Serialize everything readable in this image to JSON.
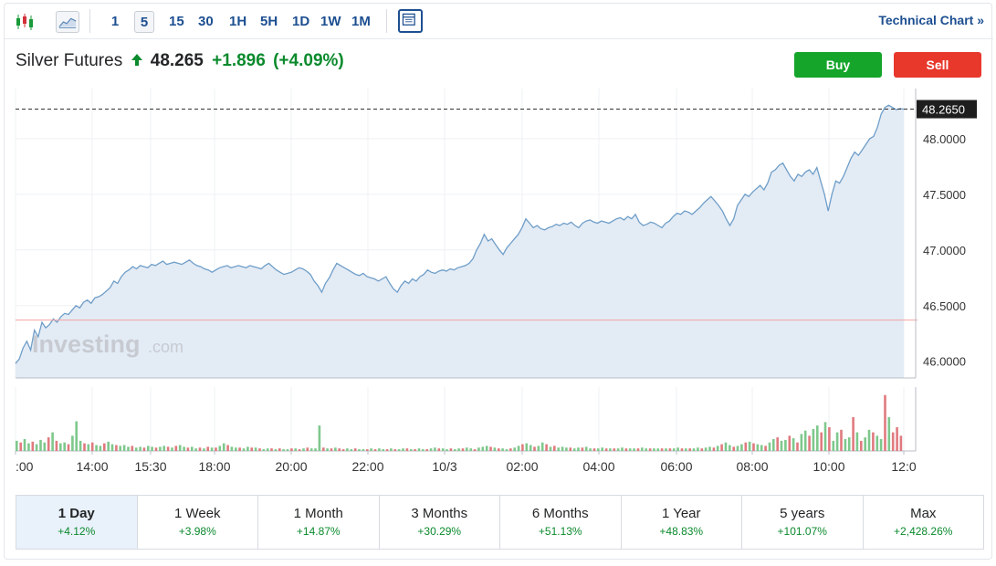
{
  "toolbar": {
    "candle_icon": "candlestick-icon",
    "area_icon": "area-chart-icon",
    "intervals": [
      "1",
      "5",
      "15",
      "30",
      "1H",
      "5H",
      "1D",
      "1W",
      "1M"
    ],
    "active_interval": "5",
    "layout_icon": "layout-icon",
    "technical_chart_label": "Technical Chart »"
  },
  "quote": {
    "name": "Silver Futures",
    "direction_icon": "arrow-up-icon",
    "price": "48.265",
    "change": "+1.896",
    "change_pct": "(+4.09%)"
  },
  "actions": {
    "buy_label": "Buy",
    "sell_label": "Sell"
  },
  "watermark": {
    "brand": "Investing",
    "suffix": ".com"
  },
  "current_price_label": "48.2650",
  "colors": {
    "line": "#6f9ec8",
    "area": "#e3ebf5",
    "up": "#1a9a3a",
    "down": "#d3323a",
    "prev_close_line": "#f4a3a3",
    "label_bg": "#1e1e1e"
  },
  "periods": [
    {
      "label": "1 Day",
      "change": "+4.12%",
      "active": true
    },
    {
      "label": "1 Week",
      "change": "+3.98%"
    },
    {
      "label": "1 Month",
      "change": "+14.87%"
    },
    {
      "label": "3 Months",
      "change": "+30.29%"
    },
    {
      "label": "6 Months",
      "change": "+51.13%"
    },
    {
      "label": "1 Year",
      "change": "+48.83%"
    },
    {
      "label": "5 years",
      "change": "+101.07%"
    },
    {
      "label": "Max",
      "change": "+2,428.26%"
    }
  ],
  "chart_data": {
    "type": "area",
    "y_ticks": [
      "46.0000",
      "46.5000",
      "47.0000",
      "47.5000",
      "48.0000"
    ],
    "y_range": [
      45.85,
      48.45
    ],
    "x_ticks": [
      ":00",
      "14:00",
      "15:30",
      "18:00",
      "20:00",
      "22:00",
      "10/3",
      "02:00",
      "04:00",
      "06:00",
      "08:00",
      "10:00",
      "12:0"
    ],
    "previous_close": 46.37,
    "last": 48.265,
    "grid": true,
    "series": [
      {
        "values": [
          45.98,
          46.02,
          46.12,
          46.18,
          46.1,
          46.28,
          46.22,
          46.35,
          46.3,
          46.33,
          46.38,
          46.35,
          46.4,
          46.43,
          46.42,
          46.46,
          46.5,
          46.48,
          46.53,
          46.55,
          46.52,
          46.57,
          46.58,
          46.6,
          46.63,
          46.66,
          46.72,
          46.7,
          46.76,
          46.8,
          46.82,
          46.85,
          46.83,
          46.86,
          46.85,
          46.84,
          46.87,
          46.86,
          46.88,
          46.9,
          46.87,
          46.88,
          46.89,
          46.88,
          46.87,
          46.89,
          46.91,
          46.88,
          46.86,
          46.85,
          46.83,
          46.82,
          46.8,
          46.82,
          46.84,
          46.85,
          46.86,
          46.84,
          46.85,
          46.86,
          46.85,
          46.84,
          46.86,
          46.85,
          46.84,
          46.83,
          46.86,
          46.88,
          46.85,
          46.82,
          46.8,
          46.78,
          46.79,
          46.8,
          46.82,
          46.84,
          46.83,
          46.81,
          46.78,
          46.72,
          46.68,
          46.62,
          46.7,
          46.75,
          46.82,
          46.88,
          46.86,
          46.84,
          46.82,
          46.8,
          46.78,
          46.77,
          46.79,
          46.76,
          46.75,
          46.74,
          46.72,
          46.74,
          46.76,
          46.7,
          46.65,
          46.62,
          46.68,
          46.72,
          46.7,
          46.74,
          46.72,
          46.76,
          46.78,
          46.82,
          46.8,
          46.79,
          46.81,
          46.82,
          46.81,
          46.83,
          46.82,
          46.84,
          46.85,
          46.86,
          46.88,
          46.92,
          47.0,
          47.06,
          47.14,
          47.08,
          47.1,
          47.05,
          47.0,
          46.96,
          47.02,
          47.06,
          47.1,
          47.14,
          47.2,
          47.28,
          47.24,
          47.2,
          47.22,
          47.19,
          47.18,
          47.2,
          47.21,
          47.23,
          47.22,
          47.24,
          47.23,
          47.25,
          47.22,
          47.2,
          47.24,
          47.26,
          47.27,
          47.25,
          47.24,
          47.26,
          47.25,
          47.24,
          47.26,
          47.28,
          47.29,
          47.27,
          47.3,
          47.28,
          47.32,
          47.25,
          47.22,
          47.23,
          47.25,
          47.24,
          47.22,
          47.2,
          47.24,
          47.26,
          47.3,
          47.33,
          47.32,
          47.35,
          47.34,
          47.32,
          47.35,
          47.38,
          47.42,
          47.45,
          47.48,
          47.44,
          47.4,
          47.35,
          47.28,
          47.22,
          47.28,
          47.4,
          47.45,
          47.5,
          47.48,
          47.52,
          47.55,
          47.58,
          47.54,
          47.6,
          47.7,
          47.72,
          47.76,
          47.78,
          47.72,
          47.66,
          47.62,
          47.68,
          47.66,
          47.7,
          47.72,
          47.68,
          47.74,
          47.62,
          47.5,
          47.35,
          47.5,
          47.62,
          47.6,
          47.66,
          47.74,
          47.82,
          47.88,
          47.85,
          47.9,
          47.95,
          48.0,
          48.02,
          48.1,
          48.22,
          48.28,
          48.3,
          48.28,
          48.26,
          48.27,
          48.265
        ]
      }
    ],
    "volume": {
      "values": [
        12,
        10,
        14,
        9,
        11,
        8,
        13,
        10,
        16,
        22,
        12,
        9,
        10,
        8,
        18,
        35,
        12,
        9,
        8,
        10,
        7,
        6,
        9,
        11,
        8,
        7,
        6,
        7,
        5,
        6,
        4,
        5,
        4,
        6,
        5,
        4,
        5,
        6,
        5,
        4,
        6,
        7,
        5,
        4,
        5,
        3,
        4,
        3,
        5,
        4,
        4,
        6,
        9,
        7,
        5,
        4,
        4,
        3,
        5,
        4,
        4,
        3,
        2,
        3,
        3,
        2,
        3,
        2,
        2,
        3,
        3,
        2,
        3,
        4,
        3,
        3,
        30,
        4,
        3,
        3,
        4,
        3,
        2,
        3,
        2,
        3,
        2,
        2,
        2,
        3,
        2,
        3,
        2,
        2,
        3,
        2,
        2,
        3,
        3,
        2,
        2,
        3,
        2,
        2,
        3,
        4,
        3,
        3,
        2,
        3,
        2,
        3,
        3,
        4,
        3,
        2,
        4,
        5,
        6,
        5,
        4,
        3,
        3,
        2,
        3,
        4,
        6,
        8,
        9,
        7,
        5,
        6,
        10,
        8,
        5,
        6,
        4,
        5,
        4,
        4,
        3,
        4,
        4,
        5,
        3,
        3,
        3,
        4,
        3,
        3,
        3,
        3,
        4,
        3,
        3,
        3,
        3,
        4,
        3,
        3,
        3,
        3,
        3,
        3,
        3,
        3,
        4,
        3,
        3,
        3,
        3,
        4,
        3,
        4,
        5,
        4,
        6,
        8,
        10,
        7,
        5,
        6,
        8,
        10,
        11,
        9,
        8,
        7,
        6,
        10,
        14,
        16,
        12,
        13,
        18,
        15,
        10,
        20,
        24,
        18,
        26,
        30,
        22,
        34,
        28,
        12,
        22,
        25,
        14,
        16,
        40,
        22,
        12,
        16,
        25,
        22,
        18,
        14,
        66,
        40,
        22,
        28,
        18
      ],
      "up": [
        1,
        0,
        1,
        1,
        0,
        1,
        1,
        1,
        0,
        1,
        0,
        1,
        1,
        0,
        1,
        1,
        1,
        0,
        1,
        0,
        1,
        1,
        0,
        1,
        1,
        0,
        1,
        1,
        1,
        0,
        1,
        1,
        0,
        1,
        1,
        0,
        1,
        1,
        0,
        1,
        0,
        1,
        1,
        0,
        1,
        1,
        0,
        1,
        0,
        1,
        0,
        1,
        1,
        0,
        1,
        1,
        0,
        1,
        1,
        0,
        1,
        0,
        1,
        1,
        0,
        1,
        0,
        1,
        1,
        0,
        1,
        0,
        1,
        0,
        1,
        1,
        1,
        0,
        1,
        0,
        1,
        0,
        0,
        1,
        1,
        0,
        1,
        1,
        0,
        1,
        0,
        1,
        1,
        0,
        1,
        0,
        1,
        1,
        0,
        1,
        0,
        1,
        1,
        0,
        1,
        1,
        0,
        1,
        1,
        0,
        1,
        1,
        0,
        1,
        1,
        0,
        1,
        1,
        1,
        0,
        1,
        0,
        1,
        1,
        0,
        1,
        1,
        0,
        1,
        1,
        0,
        1,
        1,
        0,
        1,
        0,
        1,
        1,
        1,
        0,
        1,
        1,
        0,
        1,
        1,
        0,
        1,
        1,
        0,
        1,
        0,
        1,
        1,
        0,
        1,
        1,
        0,
        1,
        1,
        0,
        1,
        1,
        0,
        1,
        0,
        1,
        1,
        0,
        1,
        0,
        1,
        1,
        0,
        1,
        1,
        0,
        1,
        0,
        1,
        1,
        0,
        1,
        1,
        0,
        1,
        0,
        1,
        1,
        0,
        1,
        1,
        0,
        1,
        1,
        0,
        1,
        0,
        1,
        1,
        0,
        1,
        1,
        0,
        1,
        0,
        1,
        1,
        0,
        1,
        1,
        0,
        1,
        0,
        1,
        1,
        0,
        1,
        1,
        0,
        1
      ]
    }
  }
}
